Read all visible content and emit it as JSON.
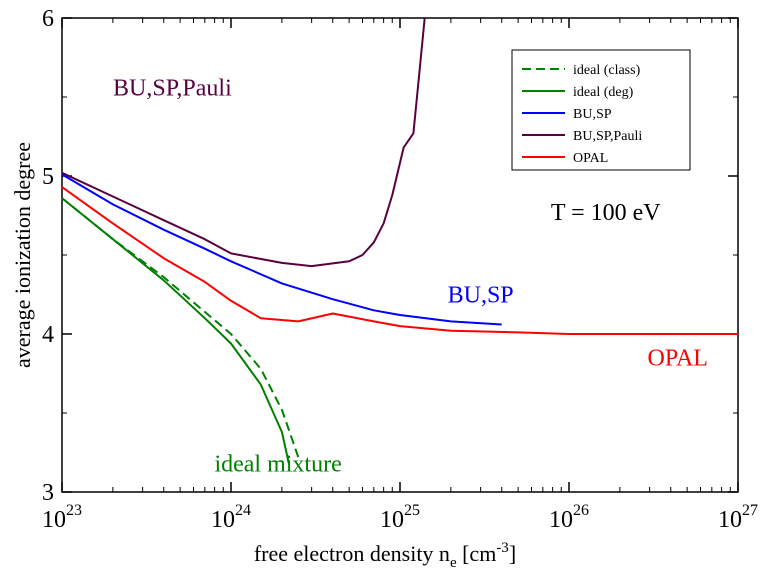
{
  "chart_data": {
    "type": "line",
    "title": "",
    "xlabel": {
      "main": "free electron density n",
      "subscript": "e",
      "unit": " [cm",
      "unit_exp": "-3",
      "unit_close": "]"
    },
    "ylabel": "average ionization degree",
    "x_scale": "log",
    "xlim": [
      1e+23,
      1e+27
    ],
    "ylim": [
      3,
      6
    ],
    "x_ticks": [
      {
        "value": 1e+23,
        "base": "10",
        "exp": "23"
      },
      {
        "value": 1e+24,
        "base": "10",
        "exp": "24"
      },
      {
        "value": 1e+25,
        "base": "10",
        "exp": "25"
      },
      {
        "value": 1e+26,
        "base": "10",
        "exp": "26"
      },
      {
        "value": 1e+27,
        "base": "10",
        "exp": "27"
      }
    ],
    "y_ticks": [
      {
        "value": 3,
        "label": "3"
      },
      {
        "value": 4,
        "label": "4"
      },
      {
        "value": 5,
        "label": "5"
      },
      {
        "value": 6,
        "label": "6"
      }
    ],
    "grid": false,
    "legend_position": "top-right",
    "series": [
      {
        "name": "ideal (class)",
        "color": "#008000",
        "dash": true,
        "points": [
          [
            1e+23,
            4.86
          ],
          [
            2e+23,
            4.6
          ],
          [
            4e+23,
            4.36
          ],
          [
            7e+23,
            4.14
          ],
          [
            1e+24,
            4.0
          ],
          [
            1.5e+24,
            3.78
          ],
          [
            2e+24,
            3.52
          ],
          [
            2.5e+24,
            3.22
          ]
        ]
      },
      {
        "name": "ideal (deg)",
        "color": "#008000",
        "dash": false,
        "points": [
          [
            1e+23,
            4.86
          ],
          [
            2e+23,
            4.6
          ],
          [
            4e+23,
            4.34
          ],
          [
            7e+23,
            4.1
          ],
          [
            1e+24,
            3.94
          ],
          [
            1.5e+24,
            3.68
          ],
          [
            2e+24,
            3.38
          ],
          [
            2.2e+24,
            3.18
          ]
        ]
      },
      {
        "name": "BU,SP",
        "color": "#0000ff",
        "dash": false,
        "points": [
          [
            1e+23,
            5.01
          ],
          [
            2e+23,
            4.82
          ],
          [
            4e+23,
            4.66
          ],
          [
            7e+23,
            4.54
          ],
          [
            1e+24,
            4.46
          ],
          [
            2e+24,
            4.32
          ],
          [
            4e+24,
            4.22
          ],
          [
            7e+24,
            4.15
          ],
          [
            1e+25,
            4.12
          ],
          [
            2e+25,
            4.08
          ],
          [
            4e+25,
            4.06
          ]
        ]
      },
      {
        "name": "BU,SP,Pauli",
        "color": "#5a0040",
        "dash": false,
        "points": [
          [
            1e+23,
            5.02
          ],
          [
            2e+23,
            4.87
          ],
          [
            4e+23,
            4.72
          ],
          [
            7e+23,
            4.6
          ],
          [
            1e+24,
            4.51
          ],
          [
            2e+24,
            4.45
          ],
          [
            3e+24,
            4.43
          ],
          [
            5e+24,
            4.46
          ],
          [
            6e+24,
            4.5
          ],
          [
            7e+24,
            4.58
          ],
          [
            8e+24,
            4.7
          ],
          [
            9e+24,
            4.88
          ],
          [
            1.05e+25,
            5.18
          ],
          [
            1.2e+25,
            5.27
          ],
          [
            1.3e+25,
            5.65
          ],
          [
            1.4e+25,
            6.0
          ]
        ]
      },
      {
        "name": "OPAL",
        "color": "#ff0000",
        "dash": false,
        "points": [
          [
            1e+23,
            4.93
          ],
          [
            2e+23,
            4.7
          ],
          [
            4e+23,
            4.48
          ],
          [
            7e+23,
            4.33
          ],
          [
            1e+24,
            4.21
          ],
          [
            1.5e+24,
            4.1
          ],
          [
            2.5e+24,
            4.08
          ],
          [
            4e+24,
            4.13
          ],
          [
            7e+24,
            4.08
          ],
          [
            1e+25,
            4.05
          ],
          [
            2e+25,
            4.02
          ],
          [
            5e+25,
            4.01
          ],
          [
            1e+26,
            4.0
          ],
          [
            1e+27,
            4.0
          ]
        ]
      }
    ],
    "annotations": [
      {
        "text": "BU,SP,Pauli",
        "x": 4.5e+23,
        "y": 5.51,
        "color": "#5a0040"
      },
      {
        "text": "T = 100 eV",
        "x": 1.65e+26,
        "y": 4.72,
        "color": "#000000"
      },
      {
        "text": "BU,SP",
        "x": 3e+25,
        "y": 4.2,
        "color": "#0000ff"
      },
      {
        "text": "OPAL",
        "x": 4.4e+26,
        "y": 3.8,
        "color": "#ff0000"
      },
      {
        "text": "ideal mixture",
        "x": 1.9e+24,
        "y": 3.13,
        "color": "#008000"
      }
    ]
  }
}
